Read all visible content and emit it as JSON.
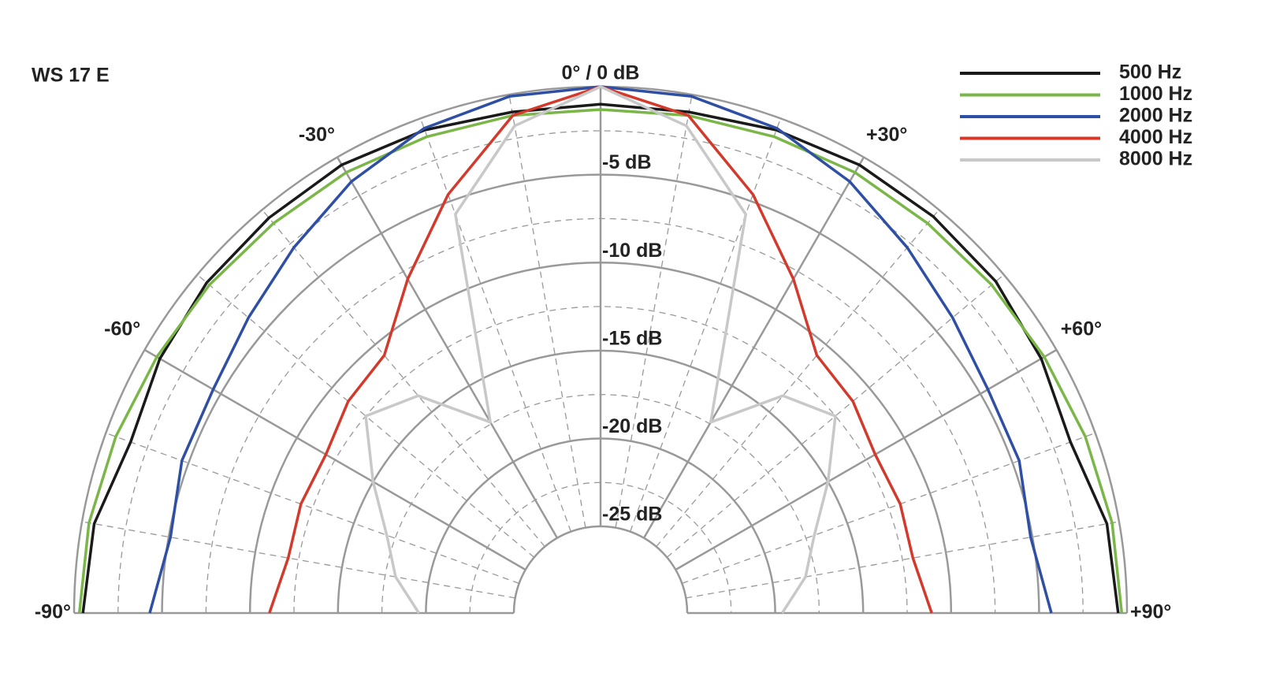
{
  "chart_data": {
    "type": "polar",
    "title": "WS 17 E",
    "x": [
      -90,
      -80,
      -70,
      -60,
      -50,
      -40,
      -30,
      -20,
      -10,
      0,
      10,
      20,
      30,
      40,
      50,
      60,
      70,
      80,
      90
    ],
    "xlim": [
      -90,
      90
    ],
    "xticks": [
      {
        "value": -90,
        "label": "-90°"
      },
      {
        "value": -60,
        "label": "-60°"
      },
      {
        "value": -30,
        "label": "-30°"
      },
      {
        "value": 0,
        "label": "0° / 0 dB"
      },
      {
        "value": 30,
        "label": "+30°"
      },
      {
        "value": 60,
        "label": "+60°"
      },
      {
        "value": 90,
        "label": "+90°"
      }
    ],
    "xminorticks": [
      -80,
      -70,
      -50,
      -40,
      -20,
      -10,
      10,
      20,
      40,
      50,
      70,
      80
    ],
    "ylim": [
      -25,
      0
    ],
    "yticks": [
      {
        "value": -5,
        "label": "-5 dB"
      },
      {
        "value": -10,
        "label": "-10 dB"
      },
      {
        "value": -15,
        "label": "-15 dB"
      },
      {
        "value": -20,
        "label": "-20 dB"
      },
      {
        "value": -25,
        "label": "-25 dB"
      }
    ],
    "yminorticks": [
      -2.5,
      -7.5,
      -12.5,
      -17.5,
      -22.5
    ],
    "grid": true,
    "legend": "top-right",
    "series": [
      {
        "name": "500 Hz",
        "color": "#1a1a1a",
        "values": [
          -0.5,
          -0.7,
          -1.5,
          -1.0,
          -0.7,
          -0.6,
          -0.5,
          -0.7,
          -1.0,
          -1.0,
          -1.0,
          -0.7,
          -0.5,
          -0.5,
          -0.6,
          -1.0,
          -1.5,
          -0.7,
          -0.5
        ]
      },
      {
        "name": "1000 Hz",
        "color": "#7ab648",
        "values": [
          -0.3,
          -0.4,
          -0.6,
          -0.8,
          -0.9,
          -1.0,
          -1.0,
          -1.1,
          -1.2,
          -1.3,
          -1.2,
          -1.1,
          -1.0,
          -1.0,
          -0.9,
          -0.8,
          -0.6,
          -0.4,
          -0.3
        ]
      },
      {
        "name": "2000 Hz",
        "color": "#2e4fa3",
        "values": [
          -4.3,
          -5.1,
          -4.6,
          -4.5,
          -3.8,
          -2.8,
          -1.6,
          -0.6,
          -0.1,
          0,
          -0.1,
          -0.6,
          -1.6,
          -2.8,
          -3.8,
          -4.5,
          -4.6,
          -5.1,
          -4.3
        ]
      },
      {
        "name": "4000 Hz",
        "color": "#d33a2c",
        "values": [
          -11.1,
          -11.9,
          -11.8,
          -11.9,
          -11.2,
          -10.8,
          -8.0,
          -4.6,
          -1.2,
          0,
          -1.2,
          -4.6,
          -8.0,
          -10.8,
          -11.2,
          -11.9,
          -11.8,
          -11.9,
          -11.1
        ]
      },
      {
        "name": "8000 Hz",
        "color": "#c8c8c8",
        "values": [
          -19.6,
          -18.1,
          -17.0,
          -15.0,
          -12.5,
          -13.8,
          -17.4,
          -5.8,
          -1.8,
          0,
          -1.8,
          -5.8,
          -17.4,
          -13.8,
          -12.5,
          -15.0,
          -17.0,
          -18.1,
          -19.6
        ]
      }
    ]
  }
}
